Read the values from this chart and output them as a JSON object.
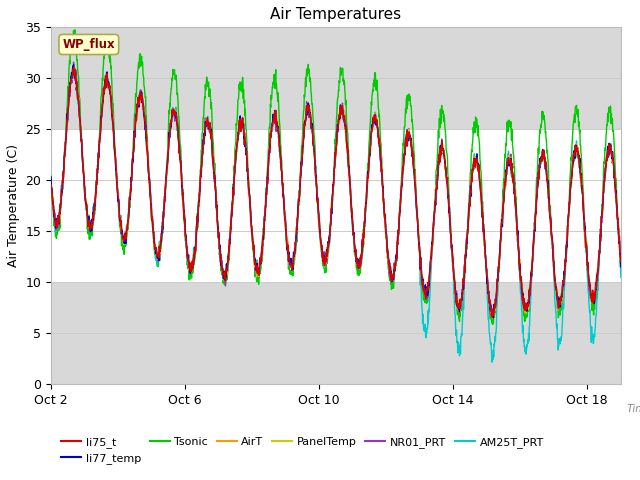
{
  "title": "Air Temperatures",
  "xlabel": "Time",
  "ylabel": "Air Temperature (C)",
  "ylim": [
    0,
    35
  ],
  "yticks": [
    0,
    5,
    10,
    15,
    20,
    25,
    30,
    35
  ],
  "xstart": 0,
  "xend": 17,
  "xtick_labels": [
    "Oct 2",
    "Oct 6",
    "Oct 10",
    "Oct 14",
    "Oct 18"
  ],
  "xtick_positions": [
    0,
    4,
    8,
    12,
    16
  ],
  "legend_entries": [
    {
      "label": "li75_t",
      "color": "#dd0000"
    },
    {
      "label": "li77_temp",
      "color": "#0000cc"
    },
    {
      "label": "Tsonic",
      "color": "#00cc00"
    },
    {
      "label": "AirT",
      "color": "#ff9900"
    },
    {
      "label": "PanelTemp",
      "color": "#cccc00"
    },
    {
      "label": "NR01_PRT",
      "color": "#9933cc"
    },
    {
      "label": "AM25T_PRT",
      "color": "#00cccc"
    }
  ],
  "annotation_label": "WP_flux",
  "bg_gray_color": "#d8d8d8",
  "bg_white_color": "#ffffff",
  "title_fontsize": 11,
  "axis_label_fontsize": 9,
  "tick_fontsize": 9
}
